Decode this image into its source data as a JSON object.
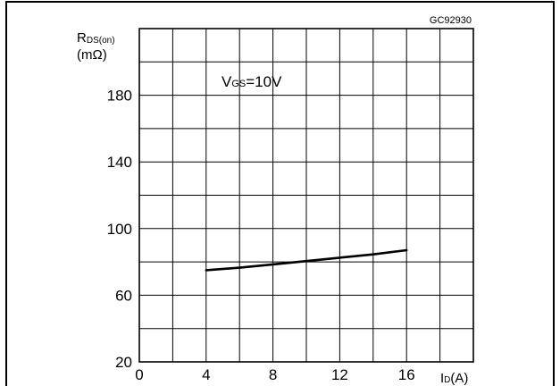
{
  "figure_code": "GC92930",
  "chart_data": {
    "type": "line",
    "xlabel": {
      "main": "I",
      "sub": "D",
      "unit": "(A)"
    },
    "ylabel": {
      "main": "R",
      "sub": "DS(on)",
      "unit": "(mΩ)"
    },
    "xlim": [
      0,
      20
    ],
    "ylim": [
      20,
      220
    ],
    "x_ticks": [
      0,
      4,
      8,
      12,
      16
    ],
    "y_ticks": [
      20,
      60,
      100,
      140,
      180
    ],
    "grid": true,
    "annotation": {
      "main": "V",
      "sub": "GS",
      "value": "=10V"
    },
    "series": [
      {
        "x": [
          4,
          6,
          8,
          10,
          12,
          14,
          16
        ],
        "y": [
          75,
          76.5,
          78.5,
          80.5,
          82.5,
          84.5,
          87
        ]
      }
    ]
  }
}
